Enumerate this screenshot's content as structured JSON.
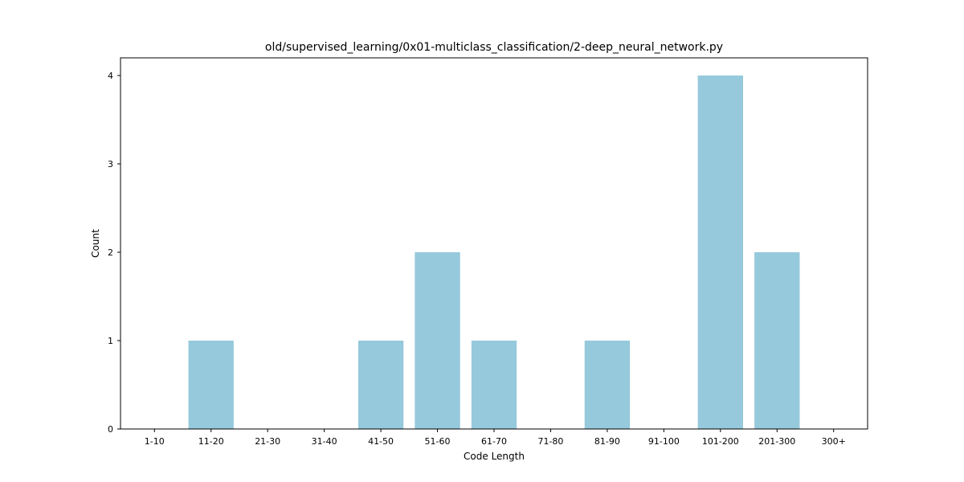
{
  "chart_data": {
    "type": "bar",
    "title": "old/supervised_learning/0x01-multiclass_classification/2-deep_neural_network.py",
    "xlabel": "Code Length",
    "ylabel": "Count",
    "categories": [
      "1-10",
      "11-20",
      "21-30",
      "31-40",
      "41-50",
      "51-60",
      "61-70",
      "71-80",
      "81-90",
      "91-100",
      "101-200",
      "201-300",
      "300+"
    ],
    "values": [
      0,
      1,
      0,
      0,
      1,
      2,
      1,
      0,
      1,
      0,
      4,
      2,
      0
    ],
    "ylim": [
      0,
      4.2
    ],
    "yticks": [
      0,
      1,
      2,
      3,
      4
    ],
    "bar_color": "#96c9dc",
    "grid": false,
    "legend": "none"
  }
}
